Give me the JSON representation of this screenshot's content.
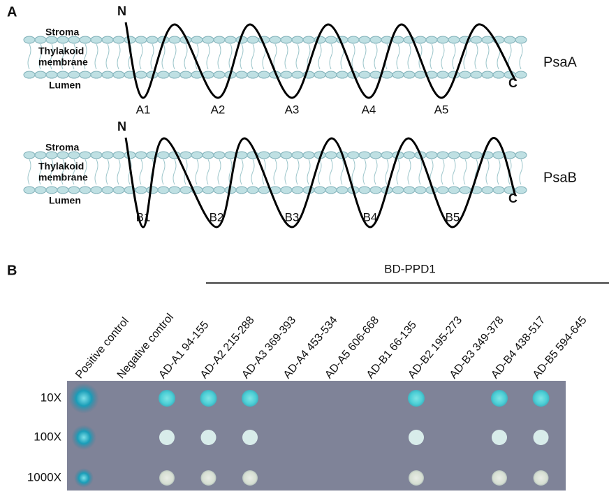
{
  "panel_a": {
    "label": "A",
    "proteins": [
      {
        "name": "PsaA",
        "n_term": "N",
        "c_term": "C",
        "stroma": "Stroma",
        "membrane": [
          "Thylakoid",
          "membrane"
        ],
        "lumen": "Lumen",
        "loops": [
          "A1",
          "A2",
          "A3",
          "A4",
          "A5"
        ]
      },
      {
        "name": "PsaB",
        "n_term": "N",
        "c_term": "C",
        "stroma": "Stroma",
        "membrane": [
          "Thylakoid",
          "membrane"
        ],
        "lumen": "Lumen",
        "loops": [
          "B1",
          "B2",
          "B3",
          "B4",
          "B5"
        ]
      }
    ]
  },
  "panel_b": {
    "label": "B",
    "bait": "BD-PPD1",
    "columns": [
      "Positive control",
      "Negative control",
      "AD-A1 94-155",
      "AD-A2 215-288",
      "AD-A3 369-393",
      "AD-A4 453-534",
      "AD-A5 606-668",
      "AD-B1 66-135",
      "AD-B2 195-273",
      "AD-B3 349-378",
      "AD-B4 438-517",
      "AD-B5 594-645"
    ],
    "rows": [
      "10X",
      "100X",
      "1000X"
    ]
  }
}
